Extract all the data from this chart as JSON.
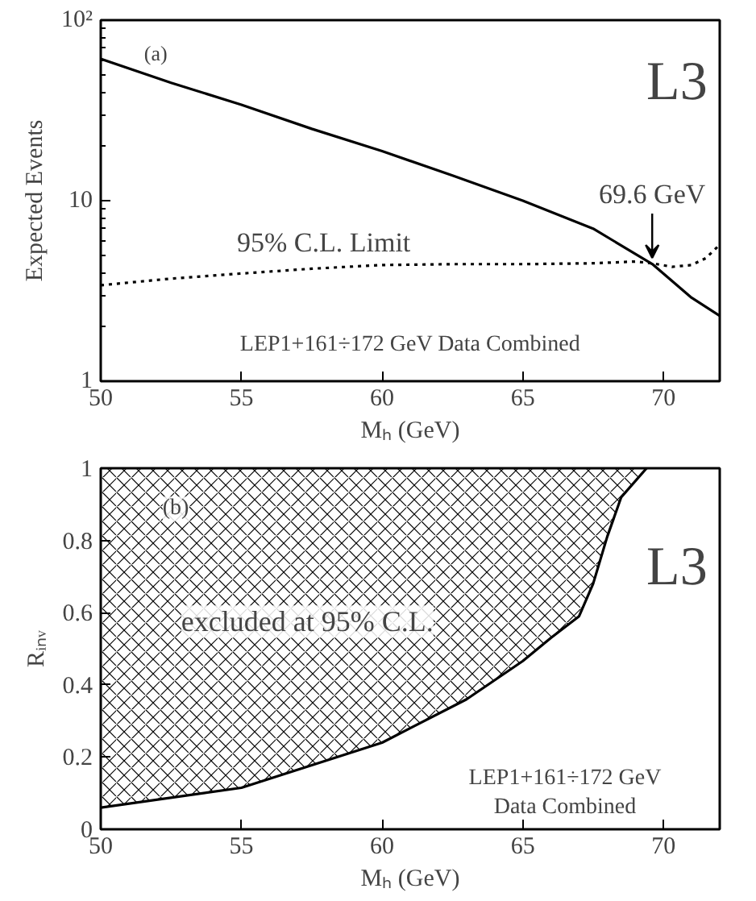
{
  "chart_data": [
    {
      "type": "line",
      "xlabel": "Mₕ (GeV)",
      "ylabel": "Expected Events",
      "log": "y",
      "xlim": [
        50,
        72
      ],
      "ylim": [
        1,
        100
      ],
      "xticks": [
        50,
        55,
        60,
        65,
        70
      ],
      "yticks": [
        1,
        10,
        {
          "value": 100,
          "label": "10²"
        }
      ],
      "series": [
        {
          "color": "#000000",
          "line_style": "solid",
          "x": [
            50,
            52.5,
            55,
            57.5,
            60,
            62.5,
            65,
            67.5,
            69.6,
            71,
            72
          ],
          "values": [
            61,
            45,
            34,
            25,
            18.8,
            13.8,
            10,
            7,
            4.46,
            2.9,
            2.3
          ]
        },
        {
          "color": "#000000",
          "line_style": "dotted",
          "x": [
            50,
            52.5,
            55,
            57.5,
            60,
            62.5,
            65,
            67.5,
            69,
            69.6,
            70.3,
            71,
            71.5,
            72
          ],
          "values": [
            3.4,
            3.7,
            3.95,
            4.2,
            4.4,
            4.45,
            4.45,
            4.5,
            4.6,
            4.5,
            4.3,
            4.4,
            4.8,
            5.7
          ]
        }
      ],
      "annotations": [
        "(a)",
        "L3",
        "95% C.L. Limit",
        "LEP1+161÷172 GeV Data Combined",
        {
          "text": "69.6 GeV",
          "x": 69.6,
          "y": 4.46
        }
      ]
    },
    {
      "type": "line",
      "xlabel": "Mₕ (GeV)",
      "ylabel": "Rᵢₙᵥ",
      "xlim": [
        50,
        72
      ],
      "ylim": [
        0,
        1
      ],
      "xticks": [
        50,
        55,
        60,
        65,
        70
      ],
      "yticks": [
        0,
        0.2,
        0.4,
        0.6,
        0.8,
        1
      ],
      "series": [
        {
          "color": "#000000",
          "line_style": "solid",
          "x": [
            50,
            55,
            60,
            63,
            65,
            66,
            67,
            67.5,
            68,
            68.5,
            69.4
          ],
          "values": [
            0.06,
            0.115,
            0.24,
            0.36,
            0.466,
            0.53,
            0.59,
            0.68,
            0.81,
            0.92,
            1.0
          ],
          "lower": [
            0.06,
            0.115,
            0.24,
            0.36,
            0.466,
            0.53,
            0.59,
            0.68,
            0.81,
            0.92,
            1.0
          ],
          "upper": [
            1,
            1,
            1,
            1,
            1,
            1,
            1,
            1,
            1,
            1,
            1
          ]
        }
      ],
      "annotations": [
        "(b)",
        "L3",
        "excluded at 95% C.L.",
        "LEP1+161÷172 GeV\nData Combined"
      ]
    }
  ]
}
